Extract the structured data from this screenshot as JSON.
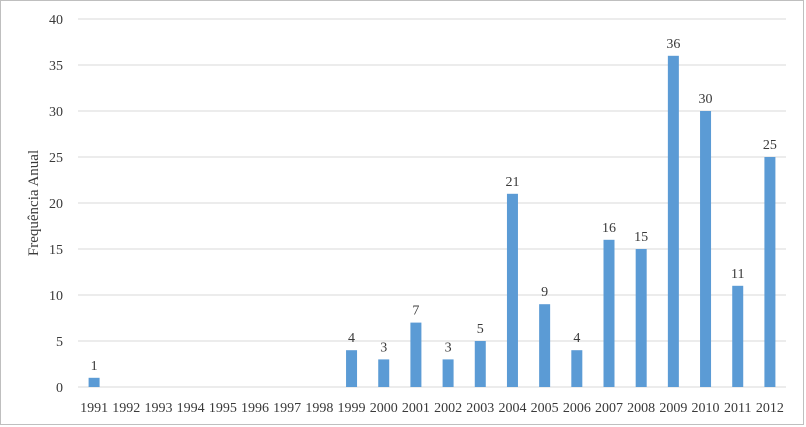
{
  "chart_data": {
    "type": "bar",
    "title": "",
    "xlabel": "",
    "ylabel": "Frequência Anual",
    "ylim": [
      0,
      40
    ],
    "yticks": [
      0,
      5,
      10,
      15,
      20,
      25,
      30,
      35,
      40
    ],
    "grid": true,
    "legend": "none",
    "colors": {
      "bar": "#5b9bd5",
      "grid": "#d9d9d9",
      "frame": "#bfbfbf"
    },
    "categories": [
      "1991",
      "1992",
      "1993",
      "1994",
      "1995",
      "1996",
      "1997",
      "1998",
      "1999",
      "2000",
      "2001",
      "2002",
      "2003",
      "2004",
      "2005",
      "2006",
      "2007",
      "2008",
      "2009",
      "2010",
      "2011",
      "2012"
    ],
    "values": [
      1,
      0,
      0,
      0,
      0,
      0,
      0,
      0,
      4,
      3,
      7,
      3,
      5,
      21,
      9,
      4,
      16,
      15,
      36,
      30,
      11,
      25
    ],
    "data_labels": [
      "1",
      "",
      "",
      "",
      "",
      "",
      "",
      "",
      "4",
      "3",
      "7",
      "3",
      "5",
      "21",
      "9",
      "4",
      "16",
      "15",
      "36",
      "30",
      "11",
      "25"
    ]
  }
}
